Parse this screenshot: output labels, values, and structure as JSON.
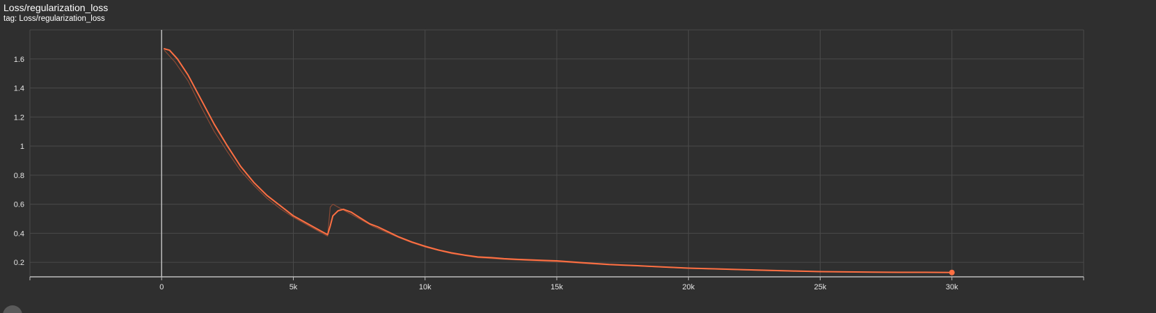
{
  "header": {
    "title": "Loss/regularization_loss",
    "subtitle": "tag: Loss/regularization_loss"
  },
  "colors": {
    "background": "#2f2f2f",
    "grid": "#4a4a4a",
    "axis": "#bdbdbd",
    "series": "#ff7043",
    "raw_series": "#8a4a35"
  },
  "chart_data": {
    "type": "line",
    "title": "Loss/regularization_loss",
    "xlabel": "",
    "ylabel": "",
    "xlim": [
      -5000,
      35000
    ],
    "ylim": [
      0.1,
      1.8
    ],
    "x_ticks": [
      0,
      5000,
      10000,
      15000,
      20000,
      25000,
      30000
    ],
    "x_tick_labels": [
      "0",
      "5k",
      "10k",
      "15k",
      "20k",
      "25k",
      "30k"
    ],
    "y_ticks": [
      0.2,
      0.4,
      0.6,
      0.8,
      1,
      1.2,
      1.4,
      1.6
    ],
    "y_tick_labels": [
      "0.2",
      "0.4",
      "0.6",
      "0.8",
      "1",
      "1.2",
      "1.4",
      "1.6"
    ],
    "grid": true,
    "series": [
      {
        "role": "smoothed",
        "x": [
          100,
          300,
          600,
          1000,
          1500,
          2000,
          2500,
          3000,
          3500,
          4000,
          4500,
          5000,
          5500,
          6000,
          6300,
          6400,
          6500,
          6700,
          6900,
          7200,
          7500,
          7900,
          8200,
          8600,
          9000,
          9500,
          10000,
          10500,
          11000,
          11500,
          12000,
          12500,
          13000,
          13500,
          14000,
          14500,
          15000,
          16000,
          17000,
          18000,
          19000,
          20000,
          21000,
          22000,
          23000,
          24000,
          25000,
          26000,
          27000,
          28000,
          29000,
          30000
        ],
        "y": [
          1.67,
          1.66,
          1.6,
          1.49,
          1.32,
          1.15,
          1.0,
          0.86,
          0.75,
          0.66,
          0.59,
          0.52,
          0.47,
          0.42,
          0.39,
          0.45,
          0.52,
          0.555,
          0.565,
          0.545,
          0.51,
          0.465,
          0.445,
          0.41,
          0.375,
          0.34,
          0.31,
          0.285,
          0.265,
          0.25,
          0.237,
          0.232,
          0.225,
          0.22,
          0.217,
          0.213,
          0.21,
          0.197,
          0.185,
          0.177,
          0.168,
          0.16,
          0.155,
          0.15,
          0.145,
          0.14,
          0.136,
          0.134,
          0.132,
          0.131,
          0.131,
          0.13
        ]
      },
      {
        "role": "raw",
        "x": [
          100,
          500,
          1000,
          1500,
          2000,
          2500,
          3000,
          3500,
          4000,
          4500,
          5000,
          5500,
          6000,
          6300,
          6400,
          6500,
          6800,
          7200,
          7600,
          8000,
          8500,
          9000,
          9500,
          10000,
          11000,
          12000,
          13000,
          14000,
          15000,
          16000,
          17000,
          18000,
          20000,
          22000,
          24000,
          26000,
          28000,
          30000
        ],
        "y": [
          1.66,
          1.58,
          1.45,
          1.27,
          1.1,
          0.96,
          0.83,
          0.73,
          0.64,
          0.57,
          0.51,
          0.46,
          0.41,
          0.38,
          0.58,
          0.6,
          0.57,
          0.53,
          0.49,
          0.45,
          0.41,
          0.37,
          0.335,
          0.305,
          0.26,
          0.232,
          0.22,
          0.212,
          0.205,
          0.193,
          0.182,
          0.175,
          0.158,
          0.148,
          0.138,
          0.133,
          0.131,
          0.129
        ]
      }
    ],
    "last_point": {
      "x": 30000,
      "y": 0.13
    }
  }
}
